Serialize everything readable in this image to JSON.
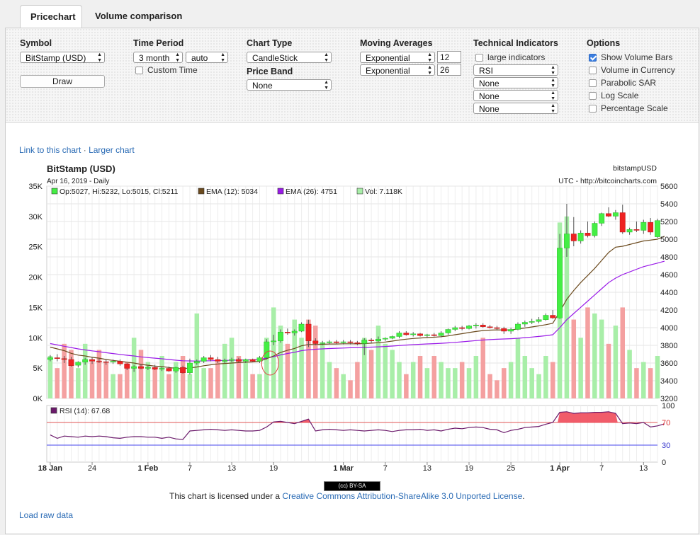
{
  "tabs": [
    {
      "label": "Pricechart",
      "active": true
    },
    {
      "label": "Volume comparison",
      "active": false
    }
  ],
  "controls": {
    "symbol": {
      "title": "Symbol",
      "value": "BitStamp (USD)",
      "draw_label": "Draw"
    },
    "time_period": {
      "title": "Time Period",
      "range": "3 month",
      "resolution": "auto",
      "custom_time_label": "Custom Time",
      "custom_time_checked": false
    },
    "chart_type": {
      "title": "Chart Type",
      "value": "CandleStick"
    },
    "price_band": {
      "title": "Price Band",
      "value": "None"
    },
    "moving_averages": {
      "title": "Moving Averages",
      "ma1_type": "Exponential",
      "ma1_period": "12",
      "ma2_type": "Exponential",
      "ma2_period": "26"
    },
    "technical_indicators": {
      "title": "Technical Indicators",
      "large_label": "large indicators",
      "large_checked": false,
      "ind1": "RSI",
      "ind2": "None",
      "ind3": "None",
      "ind4": "None"
    },
    "options": {
      "title": "Options",
      "items": [
        {
          "label": "Show Volume Bars",
          "checked": true
        },
        {
          "label": "Volume in Currency",
          "checked": false
        },
        {
          "label": "Parabolic SAR",
          "checked": false
        },
        {
          "label": "Log Scale",
          "checked": false
        },
        {
          "label": "Percentage Scale",
          "checked": false
        }
      ]
    }
  },
  "links": {
    "link_to_chart": "Link to this chart",
    "separator": "·",
    "larger_chart": "Larger chart",
    "load_raw": "Load raw data"
  },
  "license": {
    "badge": "BY-SA",
    "prefix": "This chart is licensed under a ",
    "link_text": "Creative Commons Attribution-ShareAlike 3.0 Unported License",
    "suffix": "."
  },
  "colors": {
    "up": "#44ee44",
    "down": "#ee2222",
    "vol_up": "#a8eea8",
    "vol_down": "#f4a0a0",
    "ema12": "#6b4a1e",
    "ema26": "#9a1ae8",
    "rsi": "#6b1a6b",
    "rsi_fill": "#f04a5a"
  },
  "chart_data": {
    "type": "candlestick",
    "title": "BitStamp (USD)",
    "subtitle": "Apr 16, 2019 - Daily",
    "symbol_label": "bitstampUSD",
    "source_label": "UTC - http://bitcoincharts.com",
    "legend": {
      "ohlc": "Op:5027, Hi:5232, Lo:5015, Cl:5211",
      "ema12": "EMA (12): 5034",
      "ema26": "EMA (26): 4751",
      "vol": "Vol: 7.118K"
    },
    "price_axis": {
      "min": 3200,
      "max": 5600,
      "ticks": [
        "5600",
        "5400",
        "5200",
        "5000",
        "4800",
        "4600",
        "4400",
        "4200",
        "4000",
        "3800",
        "3600",
        "3400",
        "3200"
      ]
    },
    "volume_axis": {
      "min": 0,
      "max": 35000,
      "ticks": [
        "35K",
        "30K",
        "25K",
        "20K",
        "15K",
        "10K",
        "5K",
        "0K"
      ]
    },
    "x_axis": {
      "ticks": [
        {
          "label": "18 Jan",
          "day": 0,
          "bold": true
        },
        {
          "label": "24",
          "day": 6,
          "bold": false
        },
        {
          "label": "1 Feb",
          "day": 14,
          "bold": true
        },
        {
          "label": "7",
          "day": 20,
          "bold": false
        },
        {
          "label": "13",
          "day": 26,
          "bold": false
        },
        {
          "label": "19",
          "day": 32,
          "bold": false
        },
        {
          "label": "1 Mar",
          "day": 42,
          "bold": true
        },
        {
          "label": "7",
          "day": 48,
          "bold": false
        },
        {
          "label": "13",
          "day": 54,
          "bold": false
        },
        {
          "label": "19",
          "day": 60,
          "bold": false
        },
        {
          "label": "25",
          "day": 66,
          "bold": false
        },
        {
          "label": "1 Apr",
          "day": 73,
          "bold": true
        },
        {
          "label": "7",
          "day": 79,
          "bold": false
        },
        {
          "label": "13",
          "day": 85,
          "bold": false
        }
      ]
    },
    "candles": [
      [
        3640,
        3690,
        3620,
        3660
      ],
      [
        3660,
        3700,
        3620,
        3650
      ],
      [
        3650,
        3680,
        3600,
        3640
      ],
      [
        3640,
        3670,
        3560,
        3570
      ],
      [
        3575,
        3620,
        3550,
        3610
      ],
      [
        3610,
        3660,
        3580,
        3640
      ],
      [
        3640,
        3660,
        3590,
        3620
      ],
      [
        3620,
        3650,
        3600,
        3615
      ],
      [
        3615,
        3640,
        3580,
        3610
      ],
      [
        3610,
        3640,
        3590,
        3620
      ],
      [
        3620,
        3640,
        3570,
        3590
      ],
      [
        3590,
        3600,
        3520,
        3540
      ],
      [
        3540,
        3580,
        3500,
        3560
      ],
      [
        3560,
        3590,
        3530,
        3540
      ],
      [
        3540,
        3570,
        3520,
        3550
      ],
      [
        3550,
        3580,
        3520,
        3530
      ],
      [
        3530,
        3560,
        3510,
        3540
      ],
      [
        3540,
        3560,
        3500,
        3510
      ],
      [
        3510,
        3560,
        3490,
        3550
      ],
      [
        3550,
        3570,
        3480,
        3490
      ],
      [
        3490,
        3650,
        3470,
        3600
      ],
      [
        3600,
        3640,
        3580,
        3620
      ],
      [
        3620,
        3680,
        3600,
        3660
      ],
      [
        3660,
        3690,
        3620,
        3640
      ],
      [
        3640,
        3670,
        3600,
        3620
      ],
      [
        3620,
        3650,
        3600,
        3630
      ],
      [
        3630,
        3660,
        3610,
        3640
      ],
      [
        3640,
        3660,
        3610,
        3620
      ],
      [
        3620,
        3650,
        3600,
        3640
      ],
      [
        3640,
        3650,
        3610,
        3620
      ],
      [
        3620,
        3680,
        3600,
        3660
      ],
      [
        3660,
        3870,
        3640,
        3840
      ],
      [
        3840,
        3920,
        3800,
        3850
      ],
      [
        3850,
        3980,
        3830,
        3950
      ],
      [
        3950,
        3990,
        3920,
        3940
      ],
      [
        3940,
        3980,
        3910,
        3960
      ],
      [
        3960,
        4060,
        3950,
        4040
      ],
      [
        4040,
        4090,
        3780,
        3850
      ],
      [
        3850,
        3880,
        3800,
        3820
      ],
      [
        3820,
        3850,
        3800,
        3830
      ],
      [
        3830,
        3860,
        3810,
        3840
      ],
      [
        3840,
        3860,
        3820,
        3830
      ],
      [
        3830,
        3860,
        3810,
        3840
      ],
      [
        3840,
        3860,
        3810,
        3830
      ],
      [
        3830,
        3850,
        3800,
        3820
      ],
      [
        3820,
        3880,
        3690,
        3860
      ],
      [
        3860,
        3880,
        3830,
        3850
      ],
      [
        3850,
        3900,
        3840,
        3870
      ],
      [
        3870,
        3890,
        3850,
        3880
      ],
      [
        3880,
        3910,
        3870,
        3900
      ],
      [
        3900,
        3960,
        3880,
        3940
      ],
      [
        3940,
        3960,
        3910,
        3920
      ],
      [
        3920,
        3950,
        3900,
        3930
      ],
      [
        3930,
        3940,
        3900,
        3910
      ],
      [
        3910,
        3930,
        3890,
        3920
      ],
      [
        3920,
        3940,
        3900,
        3910
      ],
      [
        3910,
        3960,
        3890,
        3940
      ],
      [
        3940,
        3990,
        3920,
        3980
      ],
      [
        3980,
        4020,
        3960,
        4000
      ],
      [
        4000,
        4020,
        3970,
        3990
      ],
      [
        3990,
        4030,
        3980,
        4020
      ],
      [
        4020,
        4050,
        3990,
        4030
      ],
      [
        4030,
        4050,
        4000,
        4010
      ],
      [
        4010,
        4030,
        3990,
        4000
      ],
      [
        4000,
        4020,
        3980,
        3990
      ],
      [
        3990,
        4010,
        3930,
        3960
      ],
      [
        3960,
        4000,
        3930,
        3980
      ],
      [
        3980,
        4060,
        3970,
        4040
      ],
      [
        4040,
        4080,
        4010,
        4060
      ],
      [
        4060,
        4100,
        4040,
        4070
      ],
      [
        4070,
        4120,
        4050,
        4090
      ],
      [
        4090,
        4160,
        4080,
        4140
      ],
      [
        4140,
        4200,
        4100,
        4110
      ],
      [
        4110,
        5060,
        4100,
        4900
      ],
      [
        4900,
        5400,
        4800,
        5060
      ],
      [
        5060,
        5250,
        4920,
        4980
      ],
      [
        4980,
        5100,
        4950,
        5070
      ],
      [
        5070,
        5200,
        5020,
        5040
      ],
      [
        5040,
        5200,
        5020,
        5180
      ],
      [
        5180,
        5300,
        5150,
        5290
      ],
      [
        5290,
        5360,
        5250,
        5260
      ],
      [
        5260,
        5330,
        5220,
        5300
      ],
      [
        5300,
        5390,
        5060,
        5080
      ],
      [
        5080,
        5130,
        5050,
        5110
      ],
      [
        5110,
        5200,
        5080,
        5100
      ],
      [
        5100,
        5220,
        5060,
        5190
      ],
      [
        5190,
        5240,
        5050,
        5080
      ],
      [
        5027,
        5232,
        5015,
        5211
      ]
    ],
    "volume_k": [
      7,
      5,
      9,
      8,
      5,
      9,
      6,
      8,
      6,
      4,
      4,
      6,
      10,
      8,
      6,
      5,
      7,
      4,
      6,
      7,
      4,
      14,
      5,
      5,
      6,
      9,
      10,
      7,
      6,
      4,
      4,
      10,
      15,
      12,
      9,
      13,
      10,
      13,
      12,
      9,
      6,
      5,
      4,
      3,
      6,
      10,
      8,
      12,
      9,
      8,
      6,
      4,
      6,
      7,
      5,
      7,
      6,
      5,
      5,
      6,
      5,
      7,
      10,
      4,
      3,
      5,
      6,
      10,
      7,
      5,
      4,
      7,
      6,
      29,
      30,
      13,
      10,
      15,
      14,
      13,
      9,
      12,
      15,
      8,
      5,
      6,
      5,
      7
    ],
    "ema12": [
      3780,
      3760,
      3740,
      3710,
      3690,
      3680,
      3665,
      3655,
      3640,
      3630,
      3620,
      3610,
      3600,
      3585,
      3575,
      3565,
      3560,
      3550,
      3540,
      3535,
      3545,
      3555,
      3570,
      3580,
      3590,
      3595,
      3600,
      3605,
      3610,
      3612,
      3620,
      3650,
      3680,
      3720,
      3745,
      3765,
      3795,
      3810,
      3810,
      3812,
      3815,
      3815,
      3818,
      3818,
      3817,
      3820,
      3825,
      3830,
      3838,
      3848,
      3860,
      3870,
      3878,
      3883,
      3888,
      3892,
      3898,
      3907,
      3920,
      3932,
      3945,
      3957,
      3967,
      3972,
      3975,
      3974,
      3975,
      3985,
      3996,
      4008,
      4020,
      4034,
      4050,
      4180,
      4320,
      4420,
      4510,
      4590,
      4670,
      4760,
      4850,
      4910,
      4920,
      4940,
      4960,
      4980,
      4990,
      5000,
      5034
    ],
    "ema26": [
      3820,
      3805,
      3790,
      3775,
      3760,
      3748,
      3738,
      3728,
      3717,
      3707,
      3698,
      3688,
      3680,
      3670,
      3662,
      3655,
      3648,
      3640,
      3632,
      3626,
      3624,
      3622,
      3624,
      3626,
      3628,
      3630,
      3632,
      3634,
      3636,
      3638,
      3642,
      3656,
      3672,
      3692,
      3708,
      3722,
      3740,
      3750,
      3756,
      3760,
      3764,
      3767,
      3770,
      3773,
      3775,
      3777,
      3780,
      3783,
      3787,
      3792,
      3798,
      3803,
      3808,
      3812,
      3816,
      3819,
      3823,
      3828,
      3834,
      3840,
      3847,
      3854,
      3860,
      3865,
      3869,
      3872,
      3875,
      3880,
      3887,
      3894,
      3901,
      3909,
      3920,
      4000,
      4090,
      4160,
      4230,
      4300,
      4370,
      4440,
      4510,
      4560,
      4600,
      4630,
      4660,
      4690,
      4710,
      4730,
      4751
    ],
    "rsi": {
      "label": "RSI (14): 67.68",
      "min": 0,
      "max": 100,
      "levels": [
        30,
        70
      ],
      "values": [
        48,
        42,
        46,
        45,
        44,
        46,
        45,
        46,
        45,
        43,
        42,
        44,
        45,
        45,
        44,
        44,
        42,
        44,
        41,
        40,
        55,
        56,
        57,
        58,
        57,
        56,
        57,
        56,
        55,
        55,
        56,
        62,
        71,
        72,
        70,
        68,
        72,
        76,
        55,
        57,
        58,
        57,
        56,
        57,
        56,
        55,
        56,
        57,
        56,
        54,
        56,
        57,
        57,
        58,
        56,
        57,
        55,
        58,
        60,
        59,
        61,
        62,
        61,
        58,
        57,
        52,
        56,
        58,
        61,
        62,
        63,
        67,
        70,
        88,
        89,
        86,
        87,
        87,
        88,
        88,
        89,
        86,
        68,
        69,
        68,
        70,
        62,
        64,
        67.68
      ]
    }
  }
}
